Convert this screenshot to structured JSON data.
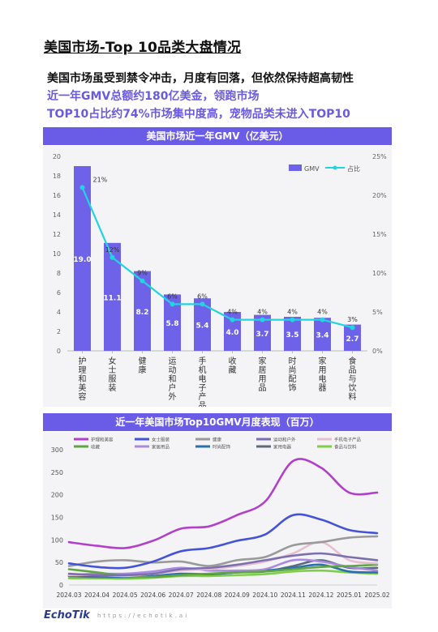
{
  "header": {
    "title": "美国市场-Top 10品类大盘情况",
    "line1": "美国市场虽受到禁令冲击，月度有回落，但依然保持超高韧性",
    "line2": "近一年GMV总额约180亿美金，领跑市场",
    "line3": "TOP10占比约74%市场集中度高，宠物品类未进入TOP10"
  },
  "colors": {
    "accent": "#6b5ce7",
    "bar": "#6e63e8",
    "line": "#22d3e0"
  },
  "chart1": {
    "title": "美国市场近一年GMV（亿美元）"
  },
  "chart2": {
    "title": "近一年美国市场Top10GMV月度表现（百万）"
  },
  "footer": {
    "logo": "EchoTik",
    "url": "https://echotik.ai"
  },
  "chart_data": [
    {
      "type": "bar",
      "categories": [
        "护理和美容",
        "女士服装",
        "健康",
        "运动和户外",
        "手机电子产品",
        "收藏",
        "家居用品",
        "时尚配饰",
        "家用电器",
        "食品与饮料"
      ],
      "series": [
        {
          "name": "GMV",
          "values": [
            19.0,
            11.1,
            8.2,
            5.8,
            5.4,
            4.0,
            3.7,
            3.5,
            3.4,
            2.7
          ],
          "value_labels": [
            "19.0",
            "11.1",
            "8.2",
            "5.8",
            "5.4",
            "4.0",
            "3.7",
            "3.5",
            "3.4",
            "2.7"
          ]
        },
        {
          "name": "占比",
          "type": "line",
          "values": [
            21,
            12,
            9,
            6,
            6,
            4,
            4,
            4,
            4,
            3
          ],
          "value_labels": [
            "21%",
            "12%",
            "9%",
            "6%",
            "6%",
            "4%",
            "4%",
            "4%",
            "4%",
            "3%"
          ]
        }
      ],
      "y_left": {
        "range": [
          0,
          20
        ],
        "ticks": [
          "0",
          "2",
          "4",
          "6",
          "8",
          "10",
          "12",
          "14",
          "16",
          "18",
          "20"
        ]
      },
      "y_right": {
        "range": [
          0,
          25
        ],
        "ticks": [
          "0%",
          "5%",
          "10%",
          "15%",
          "20%",
          "25%"
        ]
      },
      "legend": "top-right"
    },
    {
      "type": "line",
      "x": [
        "2024.03",
        "2024.04",
        "2024.05",
        "2024.06",
        "2024.07",
        "2024.08",
        "2024.09",
        "2024.10",
        "2024.11",
        "2024.12",
        "2025.01",
        "2025.02"
      ],
      "ylim": [
        0,
        300
      ],
      "y_ticks": [
        "0",
        "50",
        "100",
        "150",
        "200",
        "250",
        "300"
      ],
      "legend": "top",
      "series": [
        {
          "name": "护理和美容",
          "color": "#b23fc9",
          "values": [
            95,
            87,
            82,
            98,
            125,
            130,
            155,
            185,
            275,
            260,
            205,
            205
          ]
        },
        {
          "name": "女士服装",
          "color": "#4453d6",
          "values": [
            48,
            40,
            38,
            52,
            75,
            82,
            98,
            112,
            155,
            145,
            122,
            115
          ]
        },
        {
          "name": "健康",
          "color": "#9a9a9a",
          "values": [
            42,
            52,
            55,
            50,
            52,
            42,
            55,
            62,
            88,
            95,
            105,
            108
          ]
        },
        {
          "name": "运动和户外",
          "color": "#7b6fb0",
          "values": [
            25,
            22,
            22,
            25,
            35,
            38,
            45,
            55,
            65,
            70,
            62,
            55
          ]
        },
        {
          "name": "手机电子产品",
          "color": "#e6bfd0",
          "values": [
            22,
            22,
            20,
            25,
            32,
            35,
            42,
            52,
            70,
            95,
            55,
            48
          ]
        },
        {
          "name": "收藏",
          "color": "#5fa541",
          "values": [
            35,
            28,
            20,
            18,
            22,
            25,
            28,
            30,
            35,
            40,
            42,
            45
          ]
        },
        {
          "name": "家居用品",
          "color": "#a98ae0",
          "values": [
            22,
            25,
            25,
            30,
            38,
            32,
            32,
            35,
            55,
            52,
            40,
            32
          ]
        },
        {
          "name": "时尚配饰",
          "color": "#2b6fb0",
          "values": [
            20,
            20,
            18,
            20,
            25,
            24,
            28,
            32,
            38,
            45,
            30,
            28
          ]
        },
        {
          "name": "家用电器",
          "color": "#5b6b7b",
          "values": [
            20,
            18,
            18,
            20,
            24,
            24,
            28,
            30,
            42,
            55,
            38,
            38
          ]
        },
        {
          "name": "食品与饮料",
          "color": "#7fce4a",
          "values": [
            15,
            15,
            14,
            16,
            20,
            20,
            22,
            24,
            30,
            32,
            28,
            25
          ]
        }
      ]
    }
  ]
}
